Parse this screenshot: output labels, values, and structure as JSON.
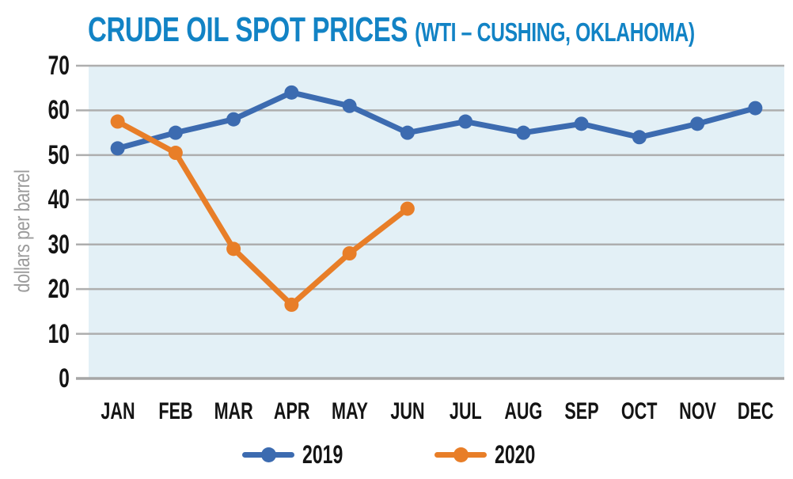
{
  "title": {
    "main": "CRUDE OIL SPOT PRICES",
    "subtitle": "(WTI – CUSHING, OKLAHOMA)"
  },
  "colors": {
    "title_blue": "#1283C5",
    "plot_background": "#E3F0F6",
    "gridline": "#AEAEAE",
    "axis_line": "#A6A6A6",
    "tick_text": "#141414",
    "y_axis_title_gray": "#9B9B9B",
    "series_2019_blue": "#3C6BB0",
    "series_2020_orange": "#E87E28"
  },
  "chart_data": {
    "type": "line",
    "title": "CRUDE OIL SPOT PRICES (WTI – CUSHING, OKLAHOMA)",
    "xlabel": "",
    "ylabel": "dollars per barrel",
    "categories": [
      "JAN",
      "FEB",
      "MAR",
      "APR",
      "MAY",
      "JUN",
      "JUL",
      "AUG",
      "SEP",
      "OCT",
      "NOV",
      "DEC"
    ],
    "ylim": [
      0,
      70
    ],
    "yticks": [
      0,
      10,
      20,
      30,
      40,
      50,
      60,
      70
    ],
    "grid": true,
    "legend_position": "bottom",
    "marker": "circle",
    "series": [
      {
        "name": "2019",
        "color": "#3C6BB0",
        "values": [
          51.5,
          55,
          58,
          64,
          61,
          55,
          57.5,
          55,
          57,
          54,
          57,
          60.5
        ]
      },
      {
        "name": "2020",
        "color": "#E87E28",
        "values": [
          57.5,
          50.5,
          29,
          16.5,
          28,
          38
        ]
      }
    ]
  }
}
